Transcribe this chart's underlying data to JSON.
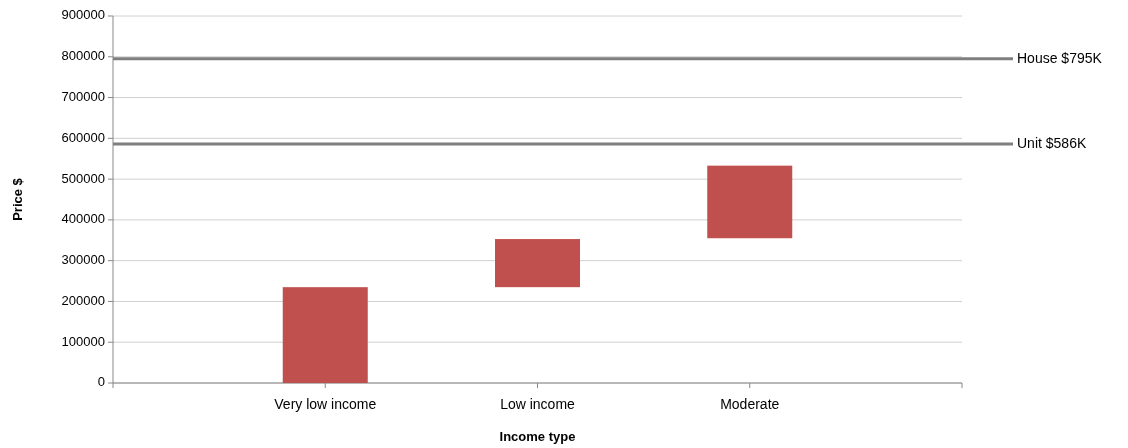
{
  "chart_data": {
    "type": "bar",
    "xlabel": "Income type",
    "ylabel": "Price $",
    "categories": [
      null,
      "Very low income",
      "Low income",
      "Moderate",
      null
    ],
    "values": [
      null,
      235000,
      118000,
      178000,
      null
    ],
    "base": [
      null,
      0,
      235000,
      355000,
      null
    ],
    "color": "#c0504d",
    "ylim": [
      0,
      900000
    ],
    "yticks": [
      0,
      100000,
      200000,
      300000,
      400000,
      500000,
      600000,
      700000,
      800000,
      900000
    ],
    "grid": "y",
    "ref_lines": [
      {
        "axis": "y",
        "value": 795000,
        "label": "House $795K",
        "color": "#7f7f7f"
      },
      {
        "axis": "y",
        "value": 586000,
        "label": "Unit $586K",
        "color": "#7f7f7f"
      }
    ]
  }
}
